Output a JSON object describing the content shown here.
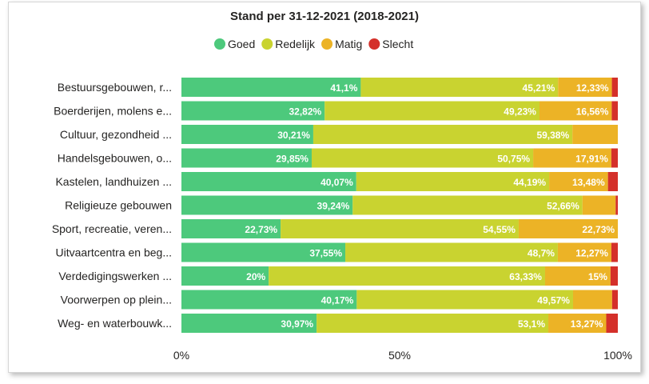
{
  "chart_data": {
    "type": "bar",
    "orientation": "horizontal",
    "stacked": "100%",
    "title": "Stand per 31-12-2021 (2018-2021)",
    "legend_position": "top-center",
    "grid": false,
    "xlim": [
      0,
      100
    ],
    "xticks": [
      "0%",
      "50%",
      "100%"
    ],
    "categories": [
      "Bestuursgebouwen, r...",
      "Boerderijen, molens e...",
      "Cultuur, gezondheid ...",
      "Handelsgebouwen, o...",
      "Kastelen, landhuizen ...",
      "Religieuze gebouwen",
      "Sport, recreatie, veren...",
      "Uitvaartcentra en beg...",
      "Verdedigingswerken ...",
      "Voorwerpen op plein...",
      "Weg- en waterbouwk..."
    ],
    "series": [
      {
        "name": "Goed",
        "color": "#4dc97c",
        "values": [
          41.1,
          32.82,
          30.21,
          29.85,
          40.07,
          39.24,
          22.73,
          37.55,
          20,
          40.17,
          30.97
        ],
        "labels": [
          "41,1%",
          "32,82%",
          "30,21%",
          "29,85%",
          "40,07%",
          "39,24%",
          "22,73%",
          "37,55%",
          "20%",
          "40,17%",
          "30,97%"
        ]
      },
      {
        "name": "Redelijk",
        "color": "#c9d330",
        "values": [
          45.21,
          49.23,
          59.38,
          50.75,
          44.19,
          52.66,
          54.55,
          48.7,
          63.33,
          49.57,
          53.1
        ],
        "labels": [
          "45,21%",
          "49,23%",
          "59,38%",
          "50,75%",
          "44,19%",
          "52,66%",
          "54,55%",
          "48,7%",
          "63,33%",
          "49,57%",
          "53,1%"
        ]
      },
      {
        "name": "Matig",
        "color": "#ecb326",
        "values": [
          12.33,
          16.56,
          10.41,
          17.91,
          13.48,
          7.6,
          22.73,
          12.27,
          15,
          8.95,
          13.27
        ],
        "labels": [
          "12,33%",
          "16,56%",
          "",
          "17,91%",
          "13,48%",
          "",
          "22,73%",
          "12,27%",
          "15%",
          "",
          "13,27%"
        ]
      },
      {
        "name": "Slecht",
        "color": "#d4302a",
        "values": [
          1.36,
          1.39,
          0,
          1.49,
          2.26,
          0.5,
          0,
          1.48,
          1.67,
          1.31,
          2.66
        ],
        "labels": [
          "",
          "",
          "",
          "",
          "",
          "",
          "",
          "",
          "",
          "",
          ""
        ]
      }
    ]
  }
}
